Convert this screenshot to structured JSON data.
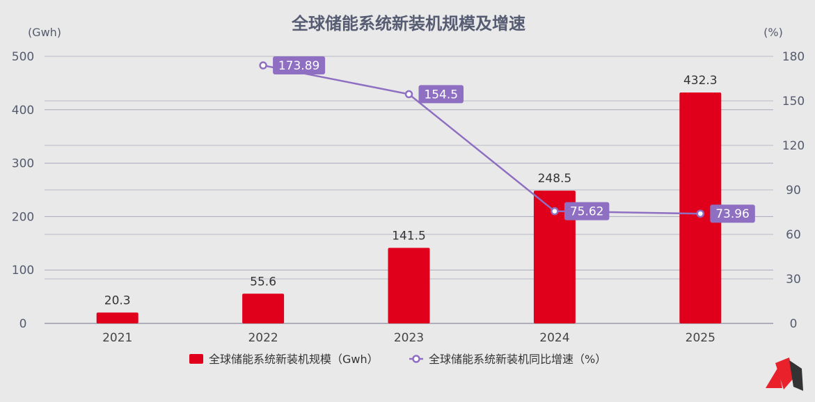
{
  "chart_data": {
    "type": "bar+line",
    "title": "全球储能系统新装机规模及增速",
    "categories": [
      "2021",
      "2022",
      "2023",
      "2024",
      "2025"
    ],
    "y_left": {
      "unit": "(Gwh)",
      "range": [
        0,
        500
      ],
      "ticks": [
        "0",
        "100",
        "200",
        "300",
        "400",
        "500"
      ]
    },
    "y_right": {
      "unit": "(%)",
      "range": [
        0,
        180
      ],
      "ticks": [
        "0",
        "30",
        "60",
        "90",
        "120",
        "150",
        "180"
      ]
    },
    "series": [
      {
        "name": "全球储能系统新装机规模（Gwh）",
        "type": "bar",
        "axis": "left",
        "color": "#e0001b",
        "values": [
          20.3,
          55.6,
          141.5,
          248.5,
          432.3
        ],
        "labels": [
          "20.3",
          "55.6",
          "141.5",
          "248.5",
          "432.3"
        ]
      },
      {
        "name": "全球储能系统新装机同比增速（%）",
        "type": "line",
        "axis": "right",
        "color": "#8e6fc1",
        "values": [
          null,
          173.89,
          154.5,
          75.62,
          73.96
        ],
        "labels": [
          "",
          "173.89",
          "154.5",
          "75.62",
          "73.96"
        ]
      }
    ],
    "grid": true,
    "legend": "bottom-center"
  },
  "logo": {
    "colors": [
      "#e8212b",
      "#333333"
    ]
  }
}
